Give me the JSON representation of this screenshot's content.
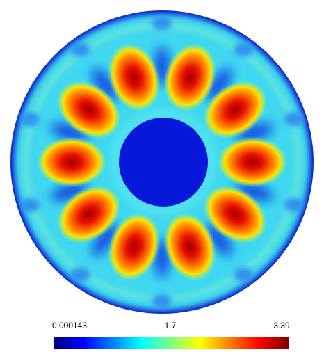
{
  "colorbar": {
    "ticks": [
      0.000143,
      1.7,
      3.39
    ],
    "colors": [
      "#00007f",
      "#0000ff",
      "#007fff",
      "#00ffff",
      "#7fff7f",
      "#ffff00",
      "#ff7f00",
      "#ff0000",
      "#7f0000"
    ]
  }
}
